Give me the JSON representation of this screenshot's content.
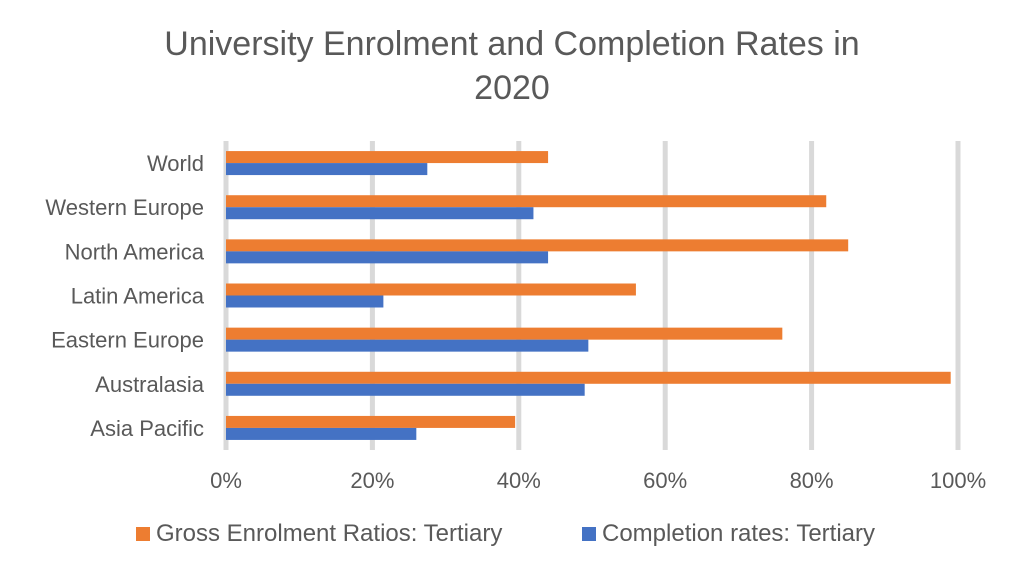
{
  "title_line1": "University Enrolment and Completion Rates in",
  "title_line2": "2020",
  "chart_data": {
    "type": "bar",
    "orientation": "horizontal",
    "title": "University Enrolment and Completion Rates in 2020",
    "categories": [
      "World",
      "Western Europe",
      "North America",
      "Latin America",
      "Eastern Europe",
      "Australasia",
      "Asia Pacific"
    ],
    "series": [
      {
        "name": "Gross Enrolment Ratios: Tertiary",
        "color": "#ED7D31",
        "values": [
          44,
          82,
          85,
          56,
          76,
          99,
          39.5
        ]
      },
      {
        "name": "Completion rates: Tertiary",
        "color": "#4472C4",
        "values": [
          27.5,
          42,
          44,
          21.5,
          49.5,
          49,
          26
        ]
      }
    ],
    "xlim": [
      0,
      100
    ],
    "xticks": [
      "0%",
      "20%",
      "40%",
      "60%",
      "80%",
      "100%"
    ],
    "grid": true,
    "legend_position": "bottom"
  }
}
